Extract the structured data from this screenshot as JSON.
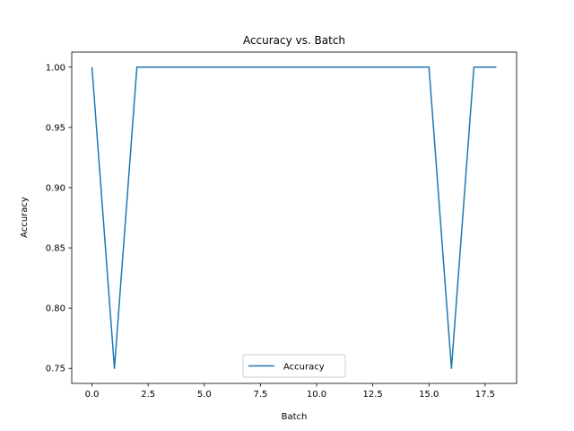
{
  "chart_data": {
    "type": "line",
    "title": "Accuracy vs. Batch",
    "xlabel": "Batch",
    "ylabel": "Accuracy",
    "xlim": [
      -0.9,
      18.9
    ],
    "ylim": [
      0.7375,
      1.0125
    ],
    "xticks": [
      0.0,
      2.5,
      5.0,
      7.5,
      10.0,
      12.5,
      15.0,
      17.5
    ],
    "xtick_labels": [
      "0.0",
      "2.5",
      "5.0",
      "7.5",
      "10.0",
      "12.5",
      "15.0",
      "17.5"
    ],
    "yticks": [
      0.75,
      0.8,
      0.85,
      0.9,
      0.95,
      1.0
    ],
    "ytick_labels": [
      "0.75",
      "0.80",
      "0.85",
      "0.90",
      "0.95",
      "1.00"
    ],
    "grid": false,
    "legend_position": "bottom-center",
    "series": [
      {
        "name": "Accuracy",
        "color": "#1f77b4",
        "x": [
          0,
          1,
          2,
          3,
          4,
          5,
          6,
          7,
          8,
          9,
          10,
          11,
          12,
          13,
          14,
          15,
          16,
          17,
          18
        ],
        "y": [
          1.0,
          0.75,
          1.0,
          1.0,
          1.0,
          1.0,
          1.0,
          1.0,
          1.0,
          1.0,
          1.0,
          1.0,
          1.0,
          1.0,
          1.0,
          1.0,
          0.75,
          1.0,
          1.0
        ]
      }
    ]
  }
}
